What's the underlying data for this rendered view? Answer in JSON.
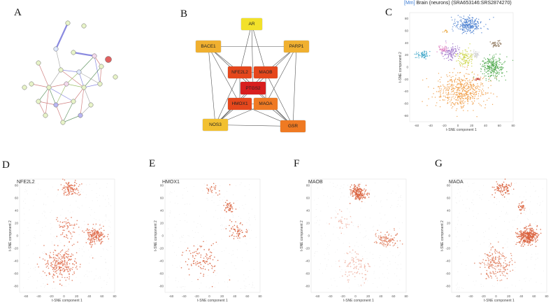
{
  "panel_labels": {
    "a": "A",
    "b": "B",
    "c": "C",
    "d": "D",
    "e": "E",
    "f": "F",
    "g": "G"
  },
  "dataset_header": {
    "tag": "[Mm]",
    "text": "Brain (neurons) (SRA653146:SRS2874270)"
  },
  "network_b": {
    "nodes": [
      {
        "name": "AR",
        "color": "#f2e12a"
      },
      {
        "name": "BACE1",
        "color": "#f0b030"
      },
      {
        "name": "PARP1",
        "color": "#f0b030"
      },
      {
        "name": "NFE2L2",
        "color": "#e5471c"
      },
      {
        "name": "MAOB",
        "color": "#e5471c"
      },
      {
        "name": "PTGS2",
        "color": "#d81e1e"
      },
      {
        "name": "HMOX1",
        "color": "#e5471c"
      },
      {
        "name": "MAOA",
        "color": "#ef7a23"
      },
      {
        "name": "NOS3",
        "color": "#f2c030"
      },
      {
        "name": "GSR",
        "color": "#ef7a23"
      }
    ]
  },
  "tsne_axes": {
    "xlabel": "t-SNE component 1",
    "ylabel": "t-SNE component 2",
    "xticks": [
      "-60",
      "-40",
      "-20",
      "0",
      "20",
      "40",
      "60",
      "80"
    ],
    "yticks": [
      "80",
      "60",
      "40",
      "20",
      "0",
      "-20",
      "-40",
      "-60",
      "-80"
    ]
  },
  "chart_data": [
    {
      "type": "scatter",
      "panel": "C",
      "title": "[Mm] Brain (neurons) (SRA653146:SRS2874270)",
      "xlabel": "t-SNE component 1",
      "ylabel": "t-SNE component 2",
      "xlim": [
        -70,
        80
      ],
      "ylim": [
        -90,
        90
      ],
      "clusters": [
        {
          "color": "#4a7fd0",
          "center": [
            15,
            70
          ],
          "spread": [
            16,
            10
          ],
          "n": 260
        },
        {
          "color": "#f0973a",
          "center": [
            5,
            -40
          ],
          "spread": [
            28,
            25
          ],
          "n": 520
        },
        {
          "color": "#4ca84a",
          "center": [
            50,
            0
          ],
          "spread": [
            14,
            15
          ],
          "n": 260
        },
        {
          "color": "#c9d23c",
          "center": [
            10,
            15
          ],
          "spread": [
            10,
            12
          ],
          "n": 110
        },
        {
          "color": "#9b6fc8",
          "center": [
            -10,
            25
          ],
          "spread": [
            10,
            9
          ],
          "n": 110
        },
        {
          "color": "#2f9fc4",
          "center": [
            -50,
            20
          ],
          "spread": [
            8,
            5
          ],
          "n": 60
        },
        {
          "color": "#e07cc0",
          "center": [
            -22,
            30
          ],
          "spread": [
            6,
            5
          ],
          "n": 40
        },
        {
          "color": "#7a5e3e",
          "center": [
            55,
            38
          ],
          "spread": [
            6,
            5
          ],
          "n": 35
        },
        {
          "color": "#d0d0d0",
          "center": [
            25,
            22
          ],
          "spread": [
            6,
            6
          ],
          "n": 40
        },
        {
          "color": "#c03030",
          "center": [
            28,
            -20
          ],
          "spread": [
            3,
            2
          ],
          "n": 15
        },
        {
          "color": "#e8a030",
          "center": [
            -18,
            58
          ],
          "spread": [
            3,
            2
          ],
          "n": 10
        }
      ]
    },
    {
      "type": "scatter",
      "panel": "D",
      "title": "NFE2L2",
      "xlabel": "t-SNE component 1",
      "ylabel": "t-SNE component 2",
      "xlim": [
        -70,
        80
      ],
      "ylim": [
        -90,
        90
      ],
      "clusters": [
        {
          "color": "#e07050",
          "center": [
            10,
            75
          ],
          "spread": [
            12,
            9
          ],
          "n": 110
        },
        {
          "color": "#e07050",
          "center": [
            50,
            0
          ],
          "spread": [
            13,
            12
          ],
          "n": 190
        },
        {
          "color": "#e07050",
          "center": [
            -5,
            -45
          ],
          "spread": [
            22,
            20
          ],
          "n": 260
        },
        {
          "color": "#e07050",
          "center": [
            5,
            15
          ],
          "spread": [
            15,
            15
          ],
          "n": 60
        }
      ]
    },
    {
      "type": "scatter",
      "panel": "E",
      "title": "HMOX1",
      "xlabel": "t-SNE component 1",
      "ylabel": "t-SNE component 2",
      "xlim": [
        -70,
        80
      ],
      "ylim": [
        -90,
        90
      ],
      "clusters": [
        {
          "color": "#d9603c",
          "center": [
            30,
            45
          ],
          "spread": [
            6,
            8
          ],
          "n": 45
        },
        {
          "color": "#d9603c",
          "center": [
            45,
            5
          ],
          "spread": [
            14,
            14
          ],
          "n": 60
        },
        {
          "color": "#d9603c",
          "center": [
            -10,
            -40
          ],
          "spread": [
            22,
            22
          ],
          "n": 100
        },
        {
          "color": "#d9603c",
          "center": [
            5,
            75
          ],
          "spread": [
            12,
            8
          ],
          "n": 25
        }
      ]
    },
    {
      "type": "scatter",
      "panel": "F",
      "title": "MAOB",
      "xlabel": "t-SNE component 1",
      "ylabel": "t-SNE component 2",
      "xlim": [
        -70,
        80
      ],
      "ylim": [
        -90,
        90
      ],
      "clusters": [
        {
          "color": "#d9603c",
          "center": [
            5,
            68
          ],
          "spread": [
            10,
            10
          ],
          "n": 190
        },
        {
          "color": "#e08060",
          "center": [
            50,
            -5
          ],
          "spread": [
            14,
            10
          ],
          "n": 110
        },
        {
          "color": "#f0b0a0",
          "center": [
            0,
            -50
          ],
          "spread": [
            20,
            18
          ],
          "n": 90
        },
        {
          "color": "#f0b0a0",
          "center": [
            -20,
            20
          ],
          "spread": [
            18,
            15
          ],
          "n": 30
        }
      ]
    },
    {
      "type": "scatter",
      "panel": "G",
      "title": "MAOA",
      "xlabel": "t-SNE component 1",
      "ylabel": "t-SNE component 2",
      "xlim": [
        -70,
        80
      ],
      "ylim": [
        -90,
        90
      ],
      "clusters": [
        {
          "color": "#d9603c",
          "center": [
            10,
            75
          ],
          "spread": [
            12,
            9
          ],
          "n": 90
        },
        {
          "color": "#d9603c",
          "center": [
            50,
            0
          ],
          "spread": [
            13,
            11
          ],
          "n": 320
        },
        {
          "color": "#e08060",
          "center": [
            0,
            -45
          ],
          "spread": [
            22,
            20
          ],
          "n": 200
        },
        {
          "color": "#d9603c",
          "center": [
            40,
            45
          ],
          "spread": [
            5,
            6
          ],
          "n": 30
        }
      ]
    }
  ]
}
